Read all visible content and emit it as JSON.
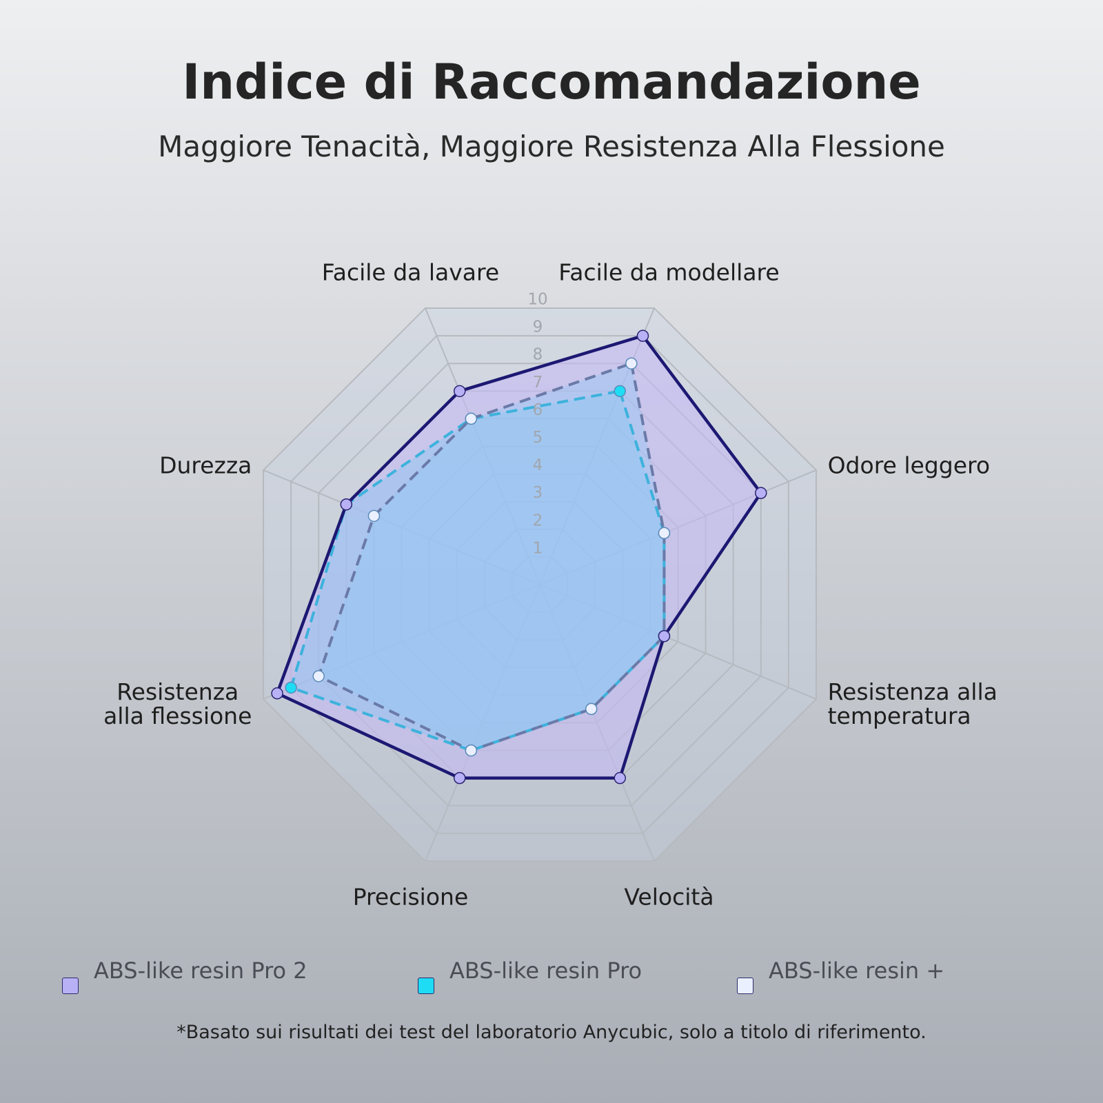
{
  "chart_data": {
    "type": "radar",
    "title": "Indice di Raccomandazione",
    "subtitle": "Maggiore Tenacità, Maggiore Resistenza Alla Flessione",
    "categories": [
      "Facile da modellare",
      "Odore leggero",
      "Resistenza alla\ntemperatura",
      "Velocità",
      "Precisione",
      "Resistenza\nalla flessione",
      "Durezza",
      "Facile da lavare"
    ],
    "rlim": [
      0,
      10
    ],
    "rticks": [
      1,
      2,
      3,
      4,
      5,
      6,
      7,
      8,
      9,
      10
    ],
    "grid": true,
    "series": [
      {
        "name": "ABS-like resin Pro 2",
        "color": "#1c1872",
        "marker_color": "#b9b1f6",
        "fill": "rgba(196,184,246,0.55)",
        "dashed": false,
        "values": [
          9,
          8,
          4.5,
          7,
          7,
          9.5,
          7,
          7
        ]
      },
      {
        "name": "ABS-like resin +",
        "color": "#6a7aa8",
        "marker_color": "#eaf0ff",
        "fill": "rgba(150,200,245,0.45)",
        "dashed": true,
        "values": [
          8,
          4.5,
          4.5,
          4.5,
          6,
          8,
          6,
          6
        ]
      },
      {
        "name": "ABS-like resin Pro",
        "color": "#3db2dc",
        "marker_color": "#1fdcf5",
        "fill": "rgba(140,200,245,0.45)",
        "dashed": true,
        "values": [
          7,
          4.5,
          4.5,
          4.5,
          6,
          9,
          7,
          6
        ]
      }
    ],
    "note": "*Basato sui risultati dei test del laboratorio Anycubic, solo a titolo di riferimento."
  }
}
